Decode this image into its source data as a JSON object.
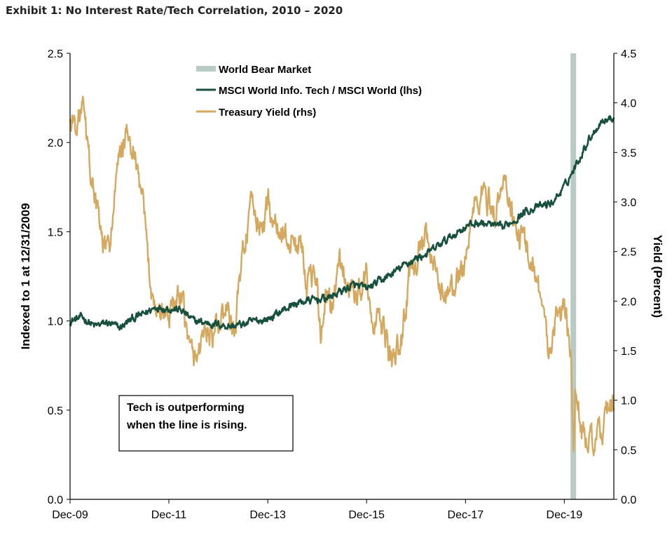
{
  "page_title": "Exhibit 1: No Interest Rate/Tech Correlation, 2010 – 2020",
  "chart_data": {
    "type": "line",
    "title": "Exhibit 1: No Interest Rate/Tech Correlation, 2010 – 2020",
    "x_axis": {
      "type": "date",
      "range": [
        "2009-12-31",
        "2020-12-31"
      ],
      "tick_labels": [
        "Dec-09",
        "Dec-11",
        "Dec-13",
        "Dec-15",
        "Dec-17",
        "Dec-19"
      ],
      "tick_dates": [
        "2009-12-31",
        "2011-12-31",
        "2013-12-31",
        "2015-12-31",
        "2017-12-31",
        "2019-12-31"
      ]
    },
    "y_left": {
      "label": "Indexed to 1 at 12/31/2009",
      "range": [
        0,
        2.5
      ],
      "ticks": [
        "0.0",
        "0.5",
        "1.0",
        "1.5",
        "2.0",
        "2.5"
      ]
    },
    "y_right": {
      "label": "Yield (Percent)",
      "range": [
        0,
        4.5
      ],
      "ticks": [
        "0.0",
        "0.5",
        "1.0",
        "1.5",
        "2.0",
        "2.5",
        "3.0",
        "3.5",
        "4.0",
        "4.5"
      ]
    },
    "shaded_regions": [
      {
        "name": "World Bear Market",
        "start": "2020-02-19",
        "end": "2020-03-23",
        "color": "#b8cbc4"
      }
    ],
    "series": [
      {
        "name": "MSCI World Info. Tech / MSCI World (lhs)",
        "axis": "left",
        "color": "#17503d",
        "points": [
          [
            "2009-12-31",
            1.0
          ],
          [
            "2010-03-31",
            1.02
          ],
          [
            "2010-06-30",
            0.97
          ],
          [
            "2010-09-30",
            0.99
          ],
          [
            "2010-12-31",
            0.96
          ],
          [
            "2011-03-31",
            1.01
          ],
          [
            "2011-06-30",
            1.04
          ],
          [
            "2011-09-30",
            1.08
          ],
          [
            "2011-12-31",
            1.07
          ],
          [
            "2012-03-31",
            1.06
          ],
          [
            "2012-06-30",
            1.0
          ],
          [
            "2012-09-30",
            0.99
          ],
          [
            "2012-12-31",
            0.98
          ],
          [
            "2013-03-31",
            0.97
          ],
          [
            "2013-06-30",
            0.98
          ],
          [
            "2013-09-30",
            1.0
          ],
          [
            "2013-12-31",
            1.01
          ],
          [
            "2014-03-31",
            1.05
          ],
          [
            "2014-06-30",
            1.09
          ],
          [
            "2014-09-30",
            1.11
          ],
          [
            "2014-12-31",
            1.12
          ],
          [
            "2015-03-31",
            1.13
          ],
          [
            "2015-06-30",
            1.17
          ],
          [
            "2015-09-30",
            1.2
          ],
          [
            "2015-12-31",
            1.18
          ],
          [
            "2016-03-31",
            1.22
          ],
          [
            "2016-06-30",
            1.26
          ],
          [
            "2016-09-30",
            1.31
          ],
          [
            "2016-12-31",
            1.35
          ],
          [
            "2017-03-31",
            1.38
          ],
          [
            "2017-06-30",
            1.43
          ],
          [
            "2017-09-30",
            1.48
          ],
          [
            "2017-12-31",
            1.53
          ],
          [
            "2018-03-31",
            1.55
          ],
          [
            "2018-06-30",
            1.54
          ],
          [
            "2018-09-30",
            1.52
          ],
          [
            "2018-12-31",
            1.57
          ],
          [
            "2019-03-31",
            1.62
          ],
          [
            "2019-06-30",
            1.64
          ],
          [
            "2019-09-30",
            1.66
          ],
          [
            "2019-12-31",
            1.75
          ],
          [
            "2020-03-31",
            1.88
          ],
          [
            "2020-06-30",
            2.02
          ],
          [
            "2020-09-30",
            2.12
          ],
          [
            "2020-12-31",
            2.14
          ]
        ]
      },
      {
        "name": "Treasury Yield (rhs)",
        "axis": "right",
        "color": "#d4a85f",
        "points": [
          [
            "2009-12-31",
            3.8
          ],
          [
            "2010-02-15",
            3.8
          ],
          [
            "2010-04-05",
            3.95
          ],
          [
            "2010-05-15",
            3.45
          ],
          [
            "2010-07-15",
            2.95
          ],
          [
            "2010-08-31",
            2.55
          ],
          [
            "2010-10-15",
            2.5
          ],
          [
            "2010-12-15",
            3.3
          ],
          [
            "2011-02-10",
            3.7
          ],
          [
            "2011-04-10",
            3.5
          ],
          [
            "2011-06-15",
            3.05
          ],
          [
            "2011-08-15",
            2.2
          ],
          [
            "2011-09-30",
            1.9
          ],
          [
            "2011-12-31",
            1.88
          ],
          [
            "2012-02-15",
            2.0
          ],
          [
            "2012-04-15",
            1.95
          ],
          [
            "2012-06-01",
            1.5
          ],
          [
            "2012-07-25",
            1.4
          ],
          [
            "2012-09-15",
            1.75
          ],
          [
            "2012-11-15",
            1.6
          ],
          [
            "2012-12-31",
            1.76
          ],
          [
            "2013-03-01",
            1.9
          ],
          [
            "2013-05-01",
            1.66
          ],
          [
            "2013-06-25",
            2.5
          ],
          [
            "2013-09-05",
            2.95
          ],
          [
            "2013-11-15",
            2.7
          ],
          [
            "2013-12-31",
            3.0
          ],
          [
            "2014-03-15",
            2.7
          ],
          [
            "2014-06-15",
            2.6
          ],
          [
            "2014-09-15",
            2.55
          ],
          [
            "2014-10-15",
            2.2
          ],
          [
            "2014-12-31",
            2.17
          ],
          [
            "2015-01-30",
            1.68
          ],
          [
            "2015-03-15",
            2.1
          ],
          [
            "2015-04-15",
            1.9
          ],
          [
            "2015-06-15",
            2.4
          ],
          [
            "2015-08-15",
            2.15
          ],
          [
            "2015-10-15",
            2.05
          ],
          [
            "2015-12-31",
            2.27
          ],
          [
            "2016-02-10",
            1.7
          ],
          [
            "2016-04-15",
            1.8
          ],
          [
            "2016-07-08",
            1.37
          ],
          [
            "2016-09-15",
            1.6
          ],
          [
            "2016-11-15",
            2.3
          ],
          [
            "2016-12-31",
            2.45
          ],
          [
            "2017-03-15",
            2.6
          ],
          [
            "2017-06-15",
            2.15
          ],
          [
            "2017-09-07",
            2.05
          ],
          [
            "2017-12-31",
            2.41
          ],
          [
            "2018-02-20",
            2.9
          ],
          [
            "2018-05-17",
            3.1
          ],
          [
            "2018-08-15",
            2.87
          ],
          [
            "2018-10-10",
            3.23
          ],
          [
            "2018-11-30",
            3.0
          ],
          [
            "2018-12-31",
            2.69
          ],
          [
            "2019-03-15",
            2.6
          ],
          [
            "2019-05-15",
            2.4
          ],
          [
            "2019-07-15",
            2.05
          ],
          [
            "2019-09-03",
            1.47
          ],
          [
            "2019-10-15",
            1.75
          ],
          [
            "2019-11-15",
            1.9
          ],
          [
            "2019-12-31",
            1.92
          ],
          [
            "2020-02-15",
            1.55
          ],
          [
            "2020-03-09",
            0.54
          ],
          [
            "2020-03-20",
            1.1
          ],
          [
            "2020-05-15",
            0.65
          ],
          [
            "2020-07-31",
            0.55
          ],
          [
            "2020-09-30",
            0.68
          ],
          [
            "2020-11-15",
            0.9
          ],
          [
            "2020-12-31",
            0.92
          ]
        ]
      }
    ],
    "legend": {
      "placement": "top-center",
      "entries": [
        "World Bear Market",
        "MSCI World Info. Tech / MSCI World (lhs)",
        "Treasury Yield (rhs)"
      ]
    },
    "annotations": [
      {
        "text_lines": [
          "Tech is outperforming",
          "when the line is rising."
        ]
      }
    ],
    "grid": false
  }
}
